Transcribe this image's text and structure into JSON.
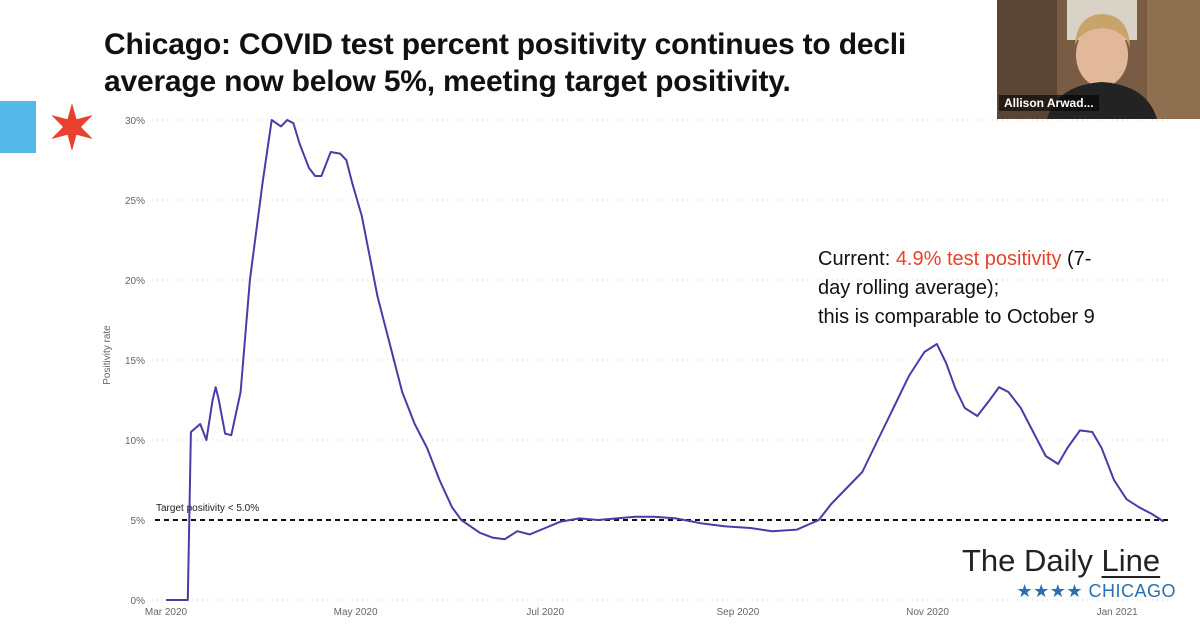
{
  "slide": {
    "title_line1": "Chicago: COVID test percent positivity continues to decli",
    "title_line2": "average now below 5%, meeting target positivity."
  },
  "video_tile": {
    "participant_name": "Allison Arwad..."
  },
  "annotation": {
    "prefix": "Current: ",
    "highlight": "4.9% test positivity",
    "rest_line1": " (7-",
    "line2": "day rolling average);",
    "line3": "this is comparable to October 9",
    "highlight_color": "#e8412c"
  },
  "branding": {
    "name_part1": "The Daily ",
    "name_part2": "Line",
    "sub": "★★★★ CHICAGO",
    "sub_color": "#2a6fb0",
    "accent_blue": "#54b8e8",
    "star_color": "#e8412c"
  },
  "chart_data": {
    "type": "line",
    "title": "",
    "ylabel": "Positivity rate",
    "xlabel": "",
    "ylim": [
      0,
      30
    ],
    "yticks": [
      0,
      5,
      10,
      15,
      20,
      25,
      30
    ],
    "ytick_labels": [
      "0%",
      "5%",
      "10%",
      "15%",
      "20%",
      "25%",
      "30%"
    ],
    "xticks": [
      "2020-03-01",
      "2020-05-01",
      "2020-07-01",
      "2020-09-01",
      "2020-11-01",
      "2021-01-01"
    ],
    "xtick_labels": [
      "Mar 2020",
      "May 2020",
      "Jul 2020",
      "Sep 2020",
      "Nov 2020",
      "Jan 2021"
    ],
    "xlim": [
      "2020-03-01",
      "2021-01-18"
    ],
    "line_color": "#4b3aa8",
    "grid": "horizontal dotted",
    "target": {
      "value": 5.0,
      "label": "Target positivity < 5.0%"
    },
    "series": [
      {
        "x": [
          "2020-03-01",
          "2020-03-08",
          "2020-03-09",
          "2020-03-12",
          "2020-03-14",
          "2020-03-16",
          "2020-03-17",
          "2020-03-18",
          "2020-03-20",
          "2020-03-22",
          "2020-03-25",
          "2020-03-28",
          "2020-04-01",
          "2020-04-04",
          "2020-04-07",
          "2020-04-09",
          "2020-04-11",
          "2020-04-13",
          "2020-04-16",
          "2020-04-18",
          "2020-04-20",
          "2020-04-23",
          "2020-04-26",
          "2020-04-28",
          "2020-04-30",
          "2020-05-03",
          "2020-05-06",
          "2020-05-08",
          "2020-05-12",
          "2020-05-16",
          "2020-05-20",
          "2020-05-24",
          "2020-05-28",
          "2020-06-01",
          "2020-06-04",
          "2020-06-07",
          "2020-06-10",
          "2020-06-14",
          "2020-06-18",
          "2020-06-22",
          "2020-06-26",
          "2020-07-01",
          "2020-07-06",
          "2020-07-12",
          "2020-07-18",
          "2020-07-24",
          "2020-07-30",
          "2020-08-05",
          "2020-08-12",
          "2020-08-20",
          "2020-08-28",
          "2020-09-05",
          "2020-09-12",
          "2020-09-20",
          "2020-09-27",
          "2020-10-01",
          "2020-10-06",
          "2020-10-11",
          "2020-10-16",
          "2020-10-21",
          "2020-10-26",
          "2020-10-31",
          "2020-11-04",
          "2020-11-07",
          "2020-11-10",
          "2020-11-13",
          "2020-11-17",
          "2020-11-21",
          "2020-11-24",
          "2020-11-27",
          "2020-12-01",
          "2020-12-05",
          "2020-12-09",
          "2020-12-13",
          "2020-12-16",
          "2020-12-20",
          "2020-12-24",
          "2020-12-27",
          "2020-12-31",
          "2021-01-04",
          "2021-01-08",
          "2021-01-12",
          "2021-01-16"
        ],
        "y": [
          0,
          0,
          10.5,
          11,
          10,
          12.5,
          13.3,
          12.5,
          10.4,
          10.3,
          13,
          20,
          26,
          30,
          29.6,
          30,
          29.8,
          28.5,
          27,
          26.5,
          26.5,
          28,
          27.9,
          27.5,
          26,
          24,
          21,
          19,
          16,
          13,
          11,
          9.5,
          7.5,
          5.8,
          5.0,
          4.6,
          4.2,
          3.9,
          3.8,
          4.3,
          4.1,
          4.5,
          4.9,
          5.1,
          5.0,
          5.1,
          5.2,
          5.2,
          5.1,
          4.8,
          4.6,
          4.5,
          4.3,
          4.4,
          5.0,
          6.0,
          7.0,
          8.0,
          10.0,
          12.0,
          14.0,
          15.5,
          16.0,
          14.8,
          13.2,
          12.0,
          11.5,
          12.5,
          13.3,
          13.0,
          12.0,
          10.5,
          9.0,
          8.5,
          9.5,
          10.6,
          10.5,
          9.5,
          7.5,
          6.3,
          5.8,
          5.4,
          4.9
        ]
      }
    ]
  }
}
